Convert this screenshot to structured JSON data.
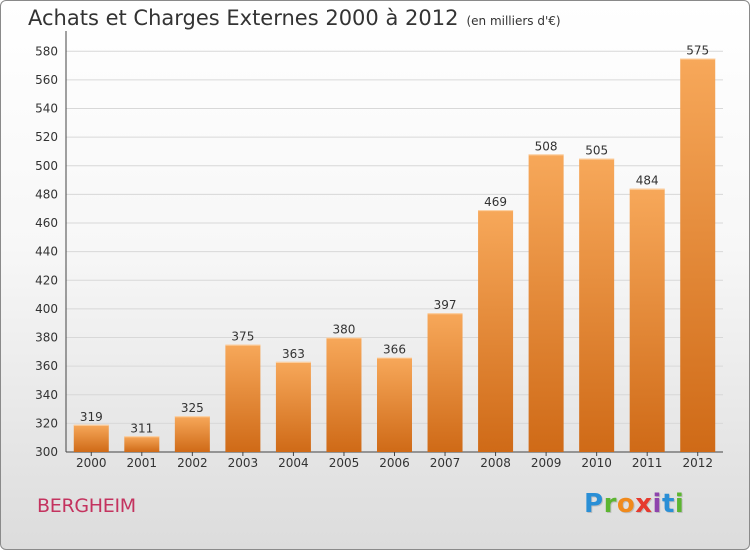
{
  "header": {
    "title": "Achats et Charges Externes 2000 à 2012",
    "unit": "(en milliers d'€)"
  },
  "footer": {
    "commune": "BERGHEIM",
    "logo_letters": [
      "P",
      "r",
      "o",
      "x",
      "i",
      "t",
      "i"
    ],
    "logo_colors": [
      "#2a8fd6",
      "#5cb531",
      "#f08a1c",
      "#e63a2e",
      "#8e44ad",
      "#2a8fd6",
      "#5cb531"
    ]
  },
  "colors": {
    "bar_light": "#f7a85a",
    "bar_dark": "#cf6a17",
    "grid": "#d8d8d8",
    "axis": "#444444"
  },
  "chart_data": {
    "type": "bar",
    "title": "Achats et Charges Externes 2000 à 2012",
    "xlabel": "",
    "ylabel": "",
    "categories": [
      "2000",
      "2001",
      "2002",
      "2003",
      "2004",
      "2005",
      "2006",
      "2007",
      "2008",
      "2009",
      "2010",
      "2011",
      "2012"
    ],
    "values": [
      319,
      311,
      325,
      375,
      363,
      380,
      366,
      397,
      469,
      508,
      505,
      484,
      575
    ],
    "ylim": [
      300,
      590
    ],
    "yticks": [
      300,
      320,
      340,
      360,
      380,
      400,
      420,
      440,
      460,
      480,
      500,
      520,
      540,
      560,
      580
    ],
    "grid": true,
    "data_labels": true
  }
}
